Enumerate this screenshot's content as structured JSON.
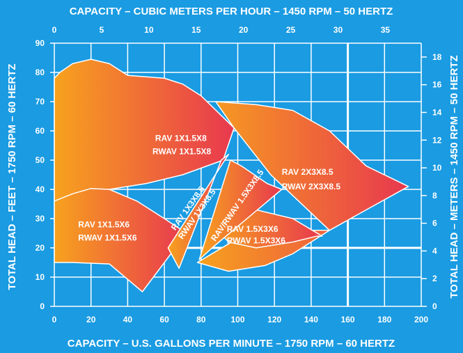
{
  "chart_data": {
    "type": "area",
    "title": "",
    "colors": {
      "background": "#1a9be2",
      "grid": "#ffffff",
      "region_gradient_start": "#f7a21e",
      "region_gradient_end": "#e8384f",
      "outline": "#ffffff"
    },
    "grid": true,
    "axes": {
      "bottom": {
        "label": "CAPACITY – U.S. GALLONS PER MINUTE – 1750 RPM – 60 HERTZ",
        "range": [
          0,
          200
        ],
        "ticks": [
          "0",
          "20",
          "40",
          "60",
          "80",
          "100",
          "120",
          "140",
          "160",
          "180",
          "200"
        ]
      },
      "top": {
        "label": "CAPACITY – CUBIC METERS PER HOUR – 1450 RPM – 50 HERTZ",
        "range": [
          0,
          38.8
        ],
        "ticks": [
          "0",
          "5",
          "10",
          "15",
          "20",
          "25",
          "30",
          "35"
        ]
      },
      "left": {
        "label": "TOTAL HEAD – FEET – 1750 RPM – 60 HERTZ",
        "range": [
          0,
          90
        ],
        "ticks": [
          "0",
          "10",
          "20",
          "30",
          "40",
          "50",
          "60",
          "70",
          "80",
          "90"
        ]
      },
      "right": {
        "label": "TOTAL HEAD – METERS – 1450 RPM – 50 HERTZ",
        "range": [
          0,
          19
        ],
        "ticks": [
          "0",
          "2",
          "4",
          "6",
          "8",
          "10",
          "12",
          "14",
          "16",
          "18"
        ]
      }
    },
    "series": [
      {
        "name": "RAV 1X1.5X8 / RWAV 1X1.5X8",
        "labels": [
          "RAV 1X1.5X8",
          "RWAV 1X1.5X8"
        ],
        "polygon": [
          [
            0,
            36
          ],
          [
            0,
            78
          ],
          [
            3,
            80
          ],
          [
            10,
            83
          ],
          [
            20,
            84.5
          ],
          [
            30,
            83
          ],
          [
            40,
            79
          ],
          [
            60,
            78
          ],
          [
            70,
            76
          ],
          [
            80,
            72
          ],
          [
            98,
            61
          ],
          [
            92,
            50
          ],
          [
            70,
            45
          ],
          [
            50,
            42
          ],
          [
            30,
            40
          ],
          [
            10,
            38
          ]
        ]
      },
      {
        "name": "RAV 1X1.5X6 / RWAV 1X1.5X6",
        "labels": [
          "RAV 1X1.5X6",
          "RWAV 1X1.5X6"
        ],
        "polygon": [
          [
            0,
            15
          ],
          [
            0,
            36
          ],
          [
            10,
            38.5
          ],
          [
            20,
            40.3
          ],
          [
            30,
            40
          ],
          [
            45,
            36
          ],
          [
            60,
            30
          ],
          [
            72,
            25
          ],
          [
            48,
            5
          ],
          [
            30,
            14.5
          ],
          [
            10,
            15
          ]
        ]
      },
      {
        "name": "RAV 2X3X8.5 / RWAV 2X3X8.5",
        "labels": [
          "RAV 2X3X8.5",
          "RWAV 2X3X8.5"
        ],
        "polygon": [
          [
            98,
            61
          ],
          [
            88,
            70
          ],
          [
            110,
            69
          ],
          [
            130,
            67
          ],
          [
            150,
            60
          ],
          [
            170,
            48
          ],
          [
            193,
            41
          ],
          [
            170,
            33
          ],
          [
            150,
            26
          ],
          [
            130,
            18
          ],
          [
            115,
            14
          ],
          [
            95,
            12
          ],
          [
            78,
            15
          ],
          [
            102,
            24
          ],
          [
            130,
            26
          ],
          [
            150,
            26
          ],
          [
            118,
            45
          ]
        ]
      },
      {
        "name": "RAV 1.5X3X6 / RWAV 1.5X3X6",
        "labels": [
          "RAV 1.5X3X6",
          "RWAV 1.5X3X6"
        ],
        "polygon": [
          [
            86,
            28
          ],
          [
            95,
            22
          ],
          [
            110,
            20
          ],
          [
            130,
            22
          ],
          [
            143,
            24
          ],
          [
            146,
            24
          ],
          [
            130,
            30
          ],
          [
            110,
            33
          ]
        ]
      },
      {
        "name": "RAV 1X3X8.5 / RWAV 1X3X8.5",
        "labels": [
          "RAV 1X3X8.5",
          "RWAV 1X3X8.5"
        ],
        "polygon": [
          [
            62,
            20
          ],
          [
            68,
            13
          ],
          [
            91,
            50
          ],
          [
            95,
            52
          ]
        ]
      },
      {
        "name": "RAV/RWAV 1.5X3X8.5",
        "labels": [
          "RAV/RWAV 1.5X3X8.5"
        ],
        "polygon": [
          [
            79,
            16
          ],
          [
            96,
            50
          ],
          [
            102,
            48
          ],
          [
            116,
            42
          ],
          [
            124,
            40
          ],
          [
            86,
            20
          ]
        ]
      }
    ]
  }
}
